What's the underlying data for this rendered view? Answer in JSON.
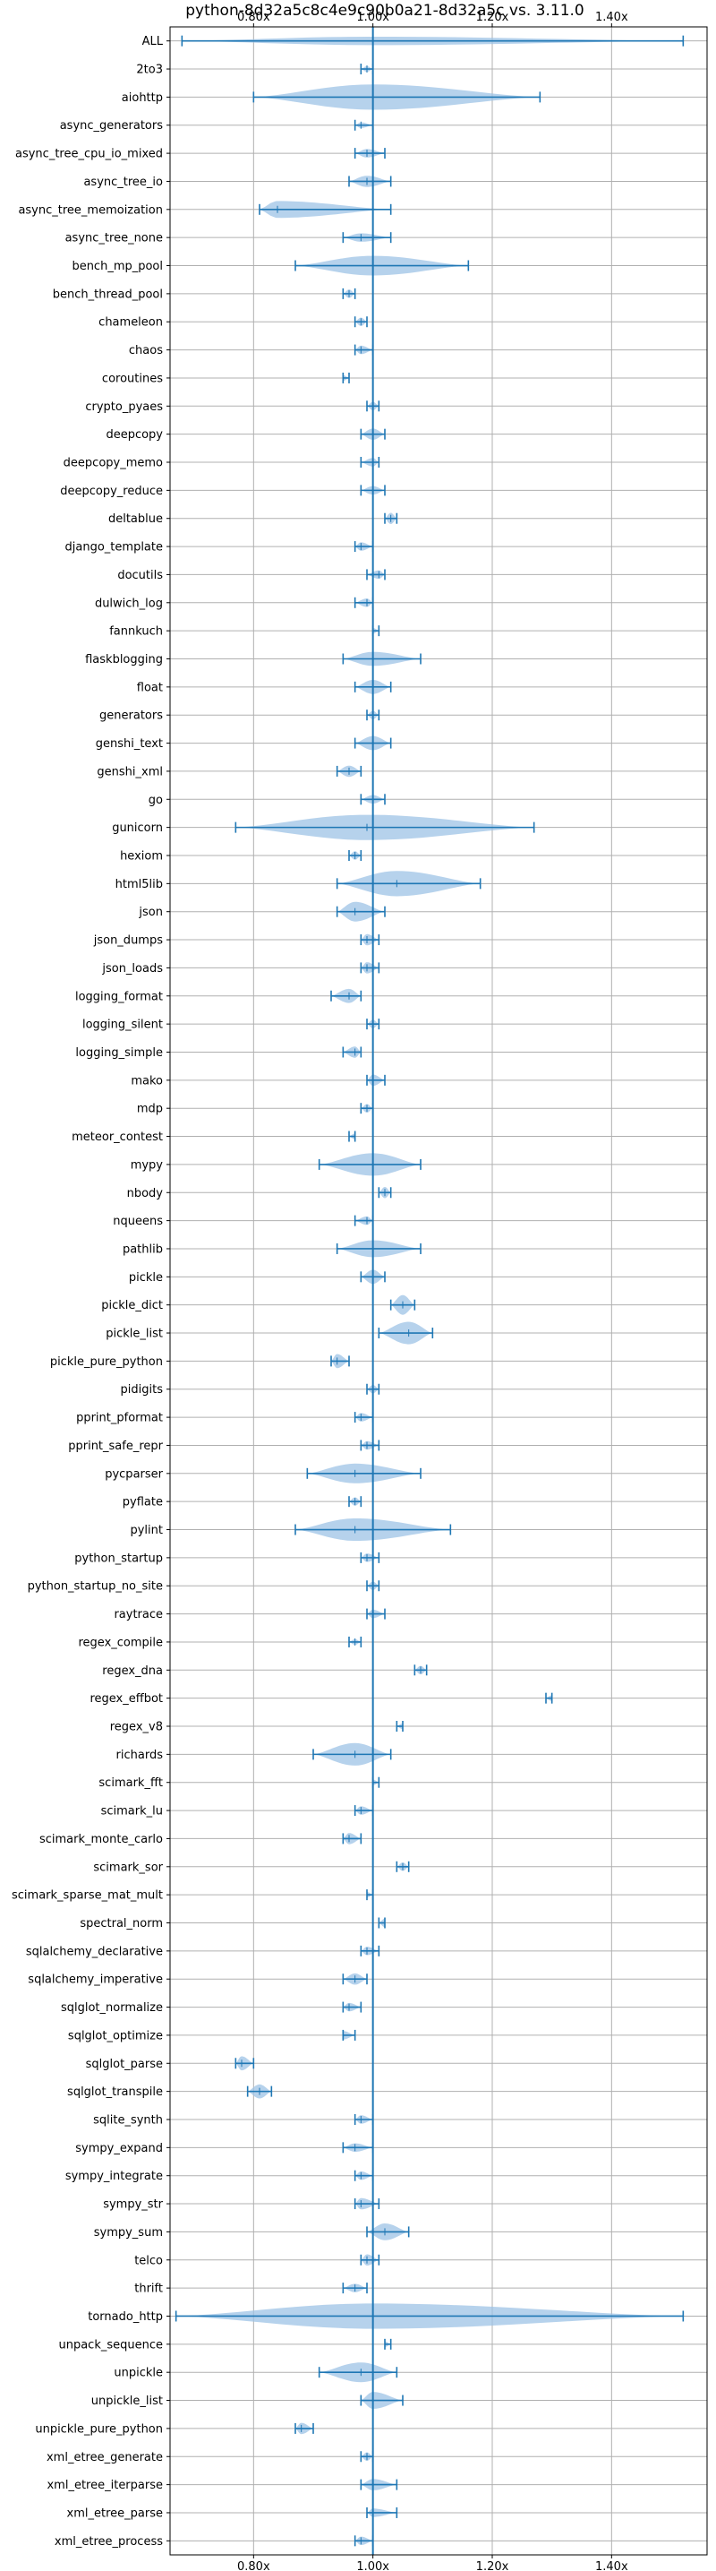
{
  "chart_data": {
    "type": "violin",
    "title": "python-8d32a5c8c4e9c90b0a21-8d32a5c vs. 3.11.0",
    "xlabel": "",
    "ylabel": "",
    "x_ticks": [
      0.8,
      1.0,
      1.2,
      1.4
    ],
    "x_tick_labels": [
      "0.80x",
      "1.00x",
      "1.20x",
      "1.40x"
    ],
    "xlim": [
      0.66,
      1.56
    ],
    "reference_line": 1.0,
    "grid": true,
    "colors": {
      "line": "#1f77b4",
      "fill": "#9ec3e6",
      "grid": "#b0b0b0"
    },
    "categories": [
      "ALL",
      "2to3",
      "aiohttp",
      "async_generators",
      "async_tree_cpu_io_mixed",
      "async_tree_io",
      "async_tree_memoization",
      "async_tree_none",
      "bench_mp_pool",
      "bench_thread_pool",
      "chameleon",
      "chaos",
      "coroutines",
      "crypto_pyaes",
      "deepcopy",
      "deepcopy_memo",
      "deepcopy_reduce",
      "deltablue",
      "django_template",
      "docutils",
      "dulwich_log",
      "fannkuch",
      "flaskblogging",
      "float",
      "generators",
      "genshi_text",
      "genshi_xml",
      "go",
      "gunicorn",
      "hexiom",
      "html5lib",
      "json",
      "json_dumps",
      "json_loads",
      "logging_format",
      "logging_silent",
      "logging_simple",
      "mako",
      "mdp",
      "meteor_contest",
      "mypy",
      "nbody",
      "nqueens",
      "pathlib",
      "pickle",
      "pickle_dict",
      "pickle_list",
      "pickle_pure_python",
      "pidigits",
      "pprint_pformat",
      "pprint_safe_repr",
      "pycparser",
      "pyflate",
      "pylint",
      "python_startup",
      "python_startup_no_site",
      "raytrace",
      "regex_compile",
      "regex_dna",
      "regex_effbot",
      "regex_v8",
      "richards",
      "scimark_fft",
      "scimark_lu",
      "scimark_monte_carlo",
      "scimark_sor",
      "scimark_sparse_mat_mult",
      "spectral_norm",
      "sqlalchemy_declarative",
      "sqlalchemy_imperative",
      "sqlglot_normalize",
      "sqlglot_optimize",
      "sqlglot_parse",
      "sqlglot_transpile",
      "sqlite_synth",
      "sympy_expand",
      "sympy_integrate",
      "sympy_str",
      "sympy_sum",
      "telco",
      "thrift",
      "tornado_http",
      "unpack_sequence",
      "unpickle",
      "unpickle_list",
      "unpickle_pure_python",
      "xml_etree_generate",
      "xml_etree_iterparse",
      "xml_etree_parse",
      "xml_etree_process"
    ],
    "min": [
      0.68,
      0.98,
      0.8,
      0.97,
      0.97,
      0.96,
      0.81,
      0.95,
      0.87,
      0.95,
      0.97,
      0.97,
      0.95,
      0.99,
      0.98,
      0.98,
      0.98,
      1.02,
      0.97,
      0.99,
      0.97,
      1.0,
      0.95,
      0.97,
      0.99,
      0.97,
      0.94,
      0.98,
      0.77,
      0.96,
      0.94,
      0.94,
      0.98,
      0.98,
      0.93,
      0.99,
      0.95,
      0.99,
      0.98,
      0.96,
      0.91,
      1.01,
      0.97,
      0.94,
      0.98,
      1.03,
      1.01,
      0.93,
      0.99,
      0.97,
      0.98,
      0.89,
      0.96,
      0.87,
      0.98,
      0.99,
      0.99,
      0.96,
      1.07,
      1.29,
      1.04,
      0.9,
      1.0,
      0.97,
      0.95,
      1.04,
      0.99,
      1.01,
      0.98,
      0.95,
      0.95,
      0.95,
      0.77,
      0.79,
      0.97,
      0.95,
      0.97,
      0.97,
      0.99,
      0.98,
      0.95,
      0.67,
      1.02,
      0.91,
      0.98,
      0.87,
      0.98,
      0.98,
      0.99,
      0.97
    ],
    "median": [
      1.0,
      0.99,
      1.0,
      0.98,
      0.99,
      0.99,
      0.84,
      0.98,
      1.0,
      0.96,
      0.98,
      0.98,
      0.95,
      1.0,
      1.0,
      1.0,
      1.0,
      1.03,
      0.98,
      1.01,
      0.99,
      1.0,
      1.0,
      1.0,
      1.0,
      1.0,
      0.96,
      1.0,
      0.99,
      0.97,
      1.04,
      0.97,
      0.99,
      0.99,
      0.96,
      1.0,
      0.97,
      1.0,
      0.99,
      0.97,
      1.0,
      1.02,
      0.99,
      1.0,
      1.0,
      1.05,
      1.06,
      0.94,
      1.0,
      0.98,
      0.99,
      0.97,
      0.97,
      0.97,
      0.99,
      1.0,
      1.0,
      0.97,
      1.08,
      1.3,
      1.05,
      0.97,
      1.0,
      0.98,
      0.96,
      1.05,
      0.99,
      1.02,
      0.99,
      0.97,
      0.96,
      0.95,
      0.78,
      0.81,
      0.98,
      0.97,
      0.98,
      0.98,
      1.02,
      0.99,
      0.97,
      1.0,
      1.02,
      0.98,
      1.0,
      0.88,
      0.99,
      1.0,
      1.0,
      0.98
    ],
    "max": [
      1.52,
      1.0,
      1.28,
      1.0,
      1.02,
      1.03,
      1.03,
      1.03,
      1.16,
      0.97,
      0.99,
      1.0,
      0.96,
      1.01,
      1.02,
      1.01,
      1.02,
      1.04,
      1.0,
      1.02,
      1.0,
      1.01,
      1.08,
      1.03,
      1.01,
      1.03,
      0.98,
      1.02,
      1.27,
      0.98,
      1.18,
      1.02,
      1.01,
      1.01,
      0.98,
      1.01,
      0.98,
      1.02,
      1.0,
      0.97,
      1.08,
      1.03,
      1.0,
      1.08,
      1.02,
      1.07,
      1.1,
      0.96,
      1.01,
      1.0,
      1.01,
      1.08,
      0.98,
      1.13,
      1.01,
      1.01,
      1.02,
      0.98,
      1.09,
      1.3,
      1.05,
      1.03,
      1.01,
      1.0,
      0.98,
      1.06,
      1.0,
      1.02,
      1.01,
      0.99,
      0.98,
      0.97,
      0.8,
      0.83,
      1.0,
      1.0,
      1.0,
      1.01,
      1.06,
      1.01,
      0.99,
      1.52,
      1.03,
      1.04,
      1.05,
      0.9,
      1.0,
      1.04,
      1.04,
      1.0
    ],
    "width": [
      0.3,
      0.2,
      0.9,
      0.2,
      0.3,
      0.4,
      0.6,
      0.3,
      0.7,
      0.3,
      0.3,
      0.3,
      0.2,
      0.3,
      0.4,
      0.3,
      0.3,
      0.4,
      0.3,
      0.3,
      0.3,
      0.2,
      0.5,
      0.5,
      0.3,
      0.5,
      0.4,
      0.3,
      0.9,
      0.3,
      0.9,
      0.7,
      0.4,
      0.4,
      0.5,
      0.3,
      0.4,
      0.4,
      0.3,
      0.2,
      0.8,
      0.4,
      0.3,
      0.6,
      0.5,
      0.7,
      0.8,
      0.5,
      0.3,
      0.3,
      0.3,
      0.7,
      0.3,
      0.8,
      0.3,
      0.3,
      0.3,
      0.2,
      0.3,
      0.2,
      0.2,
      0.8,
      0.2,
      0.3,
      0.4,
      0.3,
      0.2,
      0.3,
      0.3,
      0.4,
      0.3,
      0.3,
      0.5,
      0.5,
      0.3,
      0.3,
      0.3,
      0.4,
      0.6,
      0.4,
      0.3,
      0.9,
      0.2,
      0.7,
      0.6,
      0.4,
      0.3,
      0.4,
      0.3,
      0.3
    ]
  }
}
